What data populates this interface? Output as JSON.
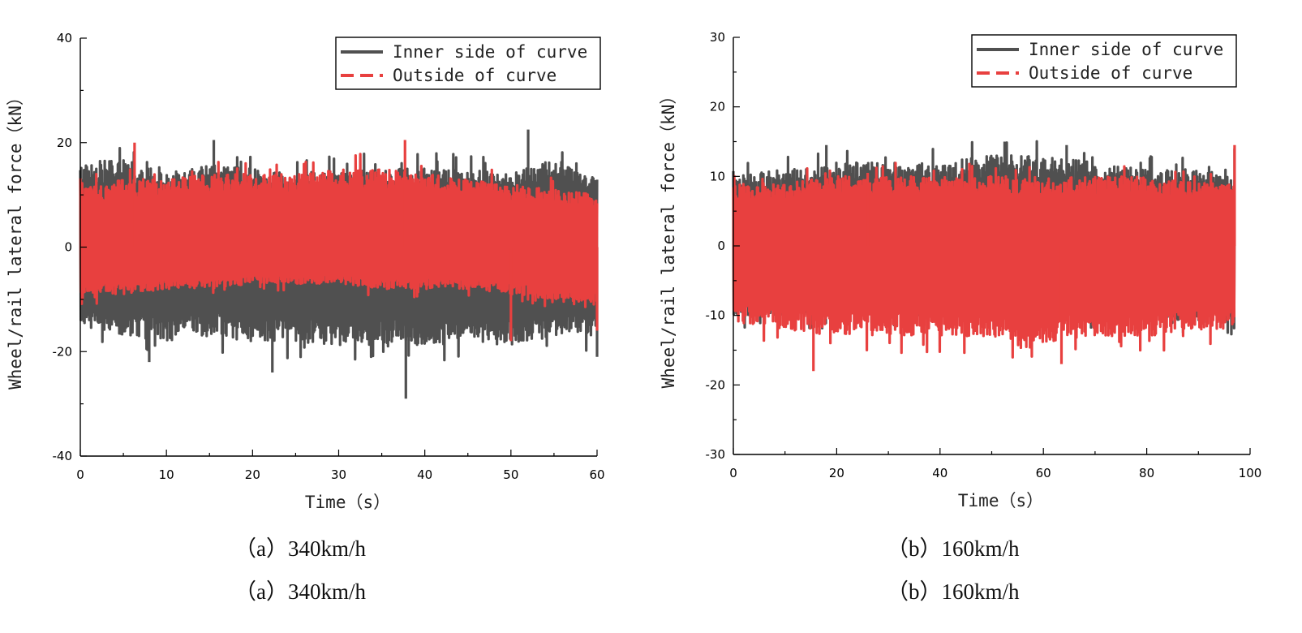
{
  "chart_data": [
    {
      "type": "line",
      "caption": "（a）340km/h",
      "caption_repeat": "（a）340km/h",
      "xlabel": "Time（s）",
      "ylabel": "Wheel/rail lateral force（kN）",
      "xlim": [
        0,
        60
      ],
      "ylim": [
        -40,
        40
      ],
      "xticks": [
        0,
        10,
        20,
        30,
        40,
        50,
        60
      ],
      "yticks": [
        -40,
        -20,
        0,
        20,
        40
      ],
      "legend_position": "top-right",
      "series": [
        {
          "name": "Inner side of curve",
          "color": "#505050",
          "line_style": "solid",
          "band": {
            "x": [
              0,
              5,
              10,
              15,
              20,
              25,
              30,
              35,
              40,
              45,
              50,
              55,
              60
            ],
            "upper": [
              16,
              17,
              14,
              16,
              15,
              14,
              15,
              15,
              15,
              15,
              14,
              17,
              13
            ],
            "lower": [
              -15,
              -17,
              -18,
              -17,
              -18,
              -18,
              -19,
              -19,
              -19,
              -18,
              -19,
              -17,
              -17
            ]
          },
          "peaks": [
            [
              8,
              -22
            ],
            [
              15.5,
              20.5
            ],
            [
              22.3,
              -24
            ],
            [
              37.8,
              -29
            ],
            [
              52,
              22.5
            ],
            [
              60,
              -21
            ]
          ]
        },
        {
          "name": "Outside of curve",
          "color": "#e8403f",
          "line_style": "dashed",
          "band": {
            "x": [
              0,
              5,
              10,
              15,
              20,
              25,
              30,
              35,
              40,
              45,
              50,
              55,
              60
            ],
            "upper": [
              11,
              13,
              13,
              14,
              14,
              14,
              15,
              15,
              14,
              13,
              12,
              11,
              10
            ],
            "lower": [
              -10,
              -9,
              -8,
              -8,
              -7,
              -7,
              -7,
              -8,
              -8,
              -8,
              -9,
              -10,
              -12
            ]
          },
          "peaks": [
            [
              6.3,
              20
            ],
            [
              37.7,
              20.5
            ],
            [
              50,
              -18
            ],
            [
              60,
              -16
            ]
          ]
        }
      ]
    },
    {
      "type": "line",
      "caption": "（b）160km/h",
      "caption_repeat": "（b）160km/h",
      "xlabel": "Time（s）",
      "ylabel": "Wheel/rail lateral force（kN）",
      "xlim": [
        0,
        100
      ],
      "ylim": [
        -30,
        30
      ],
      "xticks": [
        0,
        20,
        40,
        60,
        80,
        100
      ],
      "yticks": [
        -30,
        -20,
        -10,
        0,
        10,
        20,
        30
      ],
      "legend_position": "top-right",
      "series": [
        {
          "name": "Inner side of curve",
          "color": "#505050",
          "line_style": "solid",
          "band": {
            "x": [
              0,
              10,
              20,
              30,
              40,
              50,
              60,
              70,
              80,
              90,
              97
            ],
            "upper": [
              10,
              11,
              12,
              12,
              12,
              13,
              13,
              12,
              11,
              11,
              10
            ],
            "lower": [
              -10,
              -10,
              -10,
              -10,
              -10,
              -10,
              -10,
              -10,
              -10,
              -11,
              -11
            ]
          },
          "peaks": [
            [
              18,
              14.5
            ],
            [
              52.5,
              15
            ],
            [
              64.5,
              14.5
            ],
            [
              97,
              14
            ]
          ]
        },
        {
          "name": "Outside of curve",
          "color": "#e8403f",
          "line_style": "dashed",
          "band": {
            "x": [
              0,
              10,
              20,
              30,
              40,
              50,
              60,
              70,
              80,
              90,
              97
            ],
            "upper": [
              9,
              9,
              10,
              10,
              10,
              10,
              10,
              10,
              10,
              9,
              9
            ],
            "lower": [
              -11,
              -12,
              -13,
              -13,
              -13,
              -13,
              -14,
              -13,
              -13,
              -12,
              -12
            ]
          },
          "peaks": [
            [
              15.5,
              -18
            ],
            [
              26,
              10.5
            ],
            [
              63.5,
              -17
            ],
            [
              97,
              14.5
            ]
          ]
        }
      ]
    }
  ]
}
